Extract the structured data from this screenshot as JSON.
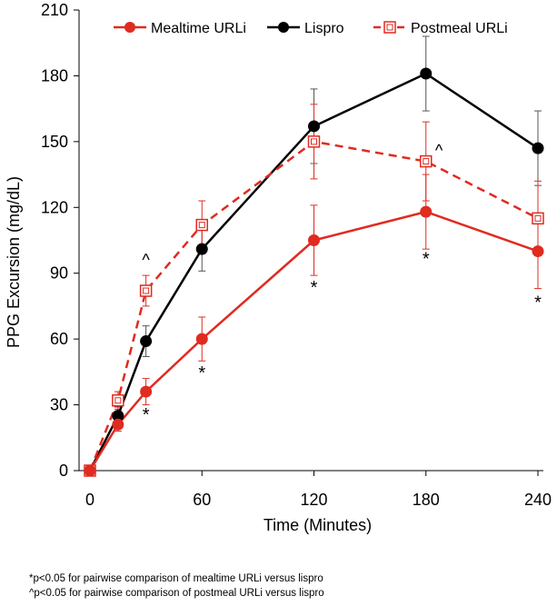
{
  "chart_data": {
    "type": "line",
    "xlabel": "Time (Minutes)",
    "ylabel": "PPG Excursion (mg/dL)",
    "xlim": [
      0,
      240
    ],
    "ylim": [
      0,
      210
    ],
    "x_ticks": [
      0,
      60,
      120,
      180,
      240
    ],
    "y_ticks": [
      0,
      30,
      60,
      90,
      120,
      150,
      180,
      210
    ],
    "grid": false,
    "legend_position": "top",
    "series": [
      {
        "name": "Mealtime URLi",
        "color": "#e02b20",
        "marker": "filled-circle",
        "line_style": "solid",
        "x": [
          0,
          15,
          30,
          60,
          120,
          180,
          240
        ],
        "y": [
          0,
          21,
          36,
          60,
          105,
          118,
          100
        ],
        "error": [
          0,
          3,
          6,
          10,
          16,
          17,
          17
        ]
      },
      {
        "name": "Lispro",
        "color": "#000000",
        "marker": "filled-circle",
        "line_style": "solid",
        "x": [
          0,
          15,
          30,
          60,
          120,
          180,
          240
        ],
        "y": [
          0,
          25,
          59,
          101,
          157,
          181,
          147
        ],
        "error": [
          0,
          4,
          7,
          10,
          17,
          17,
          17
        ]
      },
      {
        "name": "Postmeal URLi",
        "color": "#e02b20",
        "marker": "open-square",
        "line_style": "dashed",
        "x": [
          0,
          15,
          30,
          60,
          120,
          180,
          240
        ],
        "y": [
          0,
          32,
          82,
          112,
          150,
          141,
          115
        ],
        "error": [
          0,
          4,
          7,
          11,
          17,
          18,
          17
        ]
      }
    ],
    "annotations": [
      {
        "text": "*",
        "x": 30,
        "y": 27
      },
      {
        "text": "*",
        "x": 60,
        "y": 46
      },
      {
        "text": "*",
        "x": 120,
        "y": 85
      },
      {
        "text": "*",
        "x": 180,
        "y": 98
      },
      {
        "text": "*",
        "x": 240,
        "y": 78
      },
      {
        "text": "^",
        "x": 30,
        "y": 96
      },
      {
        "text": "^",
        "x": 187,
        "y": 146
      }
    ]
  },
  "footnotes": [
    "*p<0.05 for pairwise comparison of mealtime URLi versus lispro",
    "^p<0.05 for pairwise comparison of postmeal URLi versus lispro"
  ]
}
